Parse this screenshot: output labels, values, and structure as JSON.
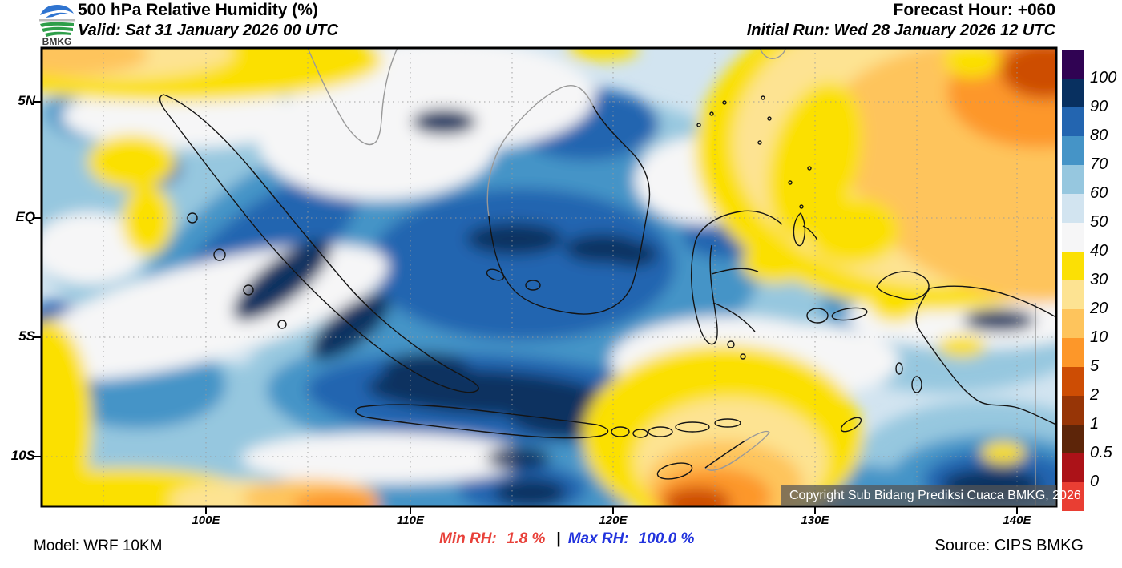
{
  "header": {
    "logo_text": "BMKG",
    "title": "500 hPa Relative Humidity (%)",
    "valid": "Valid: Sat 31 January 2026 00 UTC",
    "forecast_hour": "Forecast Hour: +060",
    "initial_run": "Initial Run: Wed 28 January 2026 12 UTC"
  },
  "map": {
    "y_axis_labels": [
      "5N",
      "EQ",
      "5S",
      "10S"
    ],
    "x_axis_labels": [
      "100E",
      "110E",
      "120E",
      "130E",
      "140E"
    ],
    "copyright": "Copyright Sub Bidang Prediksi Cuaca BMKG, 2026"
  },
  "colorbar": {
    "tick_labels": [
      "100",
      "90",
      "80",
      "70",
      "60",
      "50",
      "40",
      "30",
      "20",
      "10",
      "5",
      "2",
      "1",
      "0.5",
      "0"
    ],
    "segment_colors_top_to_bottom": [
      "#300353",
      "#083060",
      "#2365b0",
      "#4594c7",
      "#96c7df",
      "#d2e4f0",
      "#f6f6f7",
      "#fbe005",
      "#fde392",
      "#fec45c",
      "#fd9729",
      "#cd4d04",
      "#973506",
      "#5d2509",
      "#ac1218",
      "#e93e33"
    ]
  },
  "footer": {
    "model": "Model: WRF 10KM",
    "min_rh_label": "Min RH:",
    "min_rh_value": "1.8 %",
    "separator": "|",
    "max_rh_label": "Max RH:",
    "max_rh_value": "100.0 %",
    "source": "Source: CIPS BMKG",
    "min_color": "#e8413a",
    "max_color": "#2233dd"
  },
  "chart_data": {
    "type": "heatmap",
    "title": "500 hPa Relative Humidity (%)",
    "units": "%",
    "x_ticks": [
      "100E",
      "110E",
      "120E",
      "130E",
      "140E"
    ],
    "y_ticks": [
      "5N",
      "EQ",
      "5S",
      "10S"
    ],
    "approx_lon_range_deg_e": [
      92,
      142
    ],
    "approx_lat_range_deg": [
      -12.1,
      7.3
    ],
    "colorbar_levels": [
      0,
      0.5,
      1,
      2,
      5,
      10,
      20,
      30,
      40,
      50,
      60,
      70,
      80,
      90,
      100
    ],
    "min_rh_percent": 1.8,
    "max_rh_percent": 100.0,
    "legend_position": "right",
    "grid": "dotted 5-degree graticule"
  }
}
